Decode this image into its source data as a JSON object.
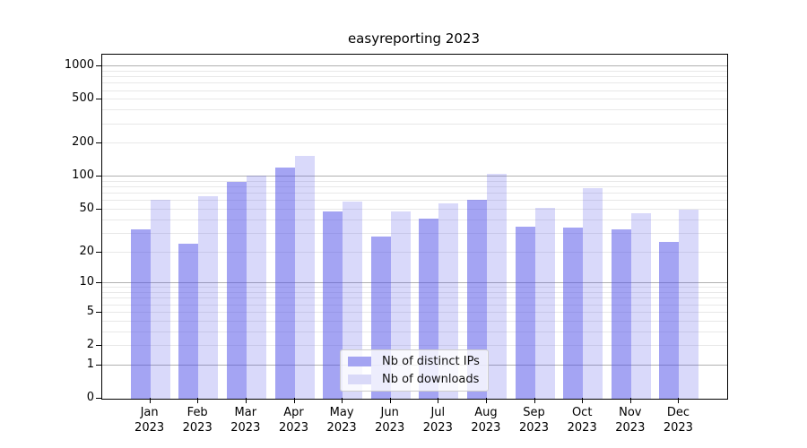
{
  "title": "easyreporting 2023",
  "chart_data": {
    "type": "bar",
    "title": "easyreporting 2023",
    "categories": [
      "Jan 2023",
      "Feb 2023",
      "Mar 2023",
      "Apr 2023",
      "May 2023",
      "Jun 2023",
      "Jul 2023",
      "Aug 2023",
      "Sep 2023",
      "Oct 2023",
      "Nov 2023",
      "Dec 2023"
    ],
    "series": [
      {
        "name": "Nb of distinct IPs",
        "color": "rgba(80,80,232,0.52)",
        "swatch_color": "#a4a4f2",
        "values": [
          33,
          24,
          90,
          122,
          48,
          28,
          41,
          62,
          35,
          34,
          33,
          25
        ]
      },
      {
        "name": "Nb of downloads",
        "color": "rgba(80,80,232,0.22)",
        "swatch_color": "#d9d9f8",
        "values": [
          62,
          66,
          103,
          154,
          59,
          48,
          57,
          106,
          52,
          79,
          46,
          50
        ]
      }
    ],
    "xlabel": "",
    "ylabel": "",
    "y_scale": "symlog",
    "y_ticks": [
      0,
      1,
      2,
      5,
      10,
      20,
      50,
      100,
      200,
      500,
      1000
    ],
    "y_major_grid": [
      1,
      10,
      100,
      1000
    ],
    "y_minor_grid": [
      2,
      3,
      4,
      5,
      6,
      7,
      8,
      9,
      20,
      30,
      40,
      50,
      60,
      70,
      80,
      90,
      200,
      300,
      400,
      500,
      600,
      700,
      800,
      900
    ],
    "ylim": [
      0,
      1280
    ],
    "grid": true,
    "legend_position": "lower center",
    "colors": {
      "major_gridline": "#b0b0b0",
      "minor_gridline": "#e8e8e8",
      "axis": "#000000",
      "legend_border": "#cccccc",
      "legend_background": "rgba(255,255,255,0.8)"
    }
  }
}
